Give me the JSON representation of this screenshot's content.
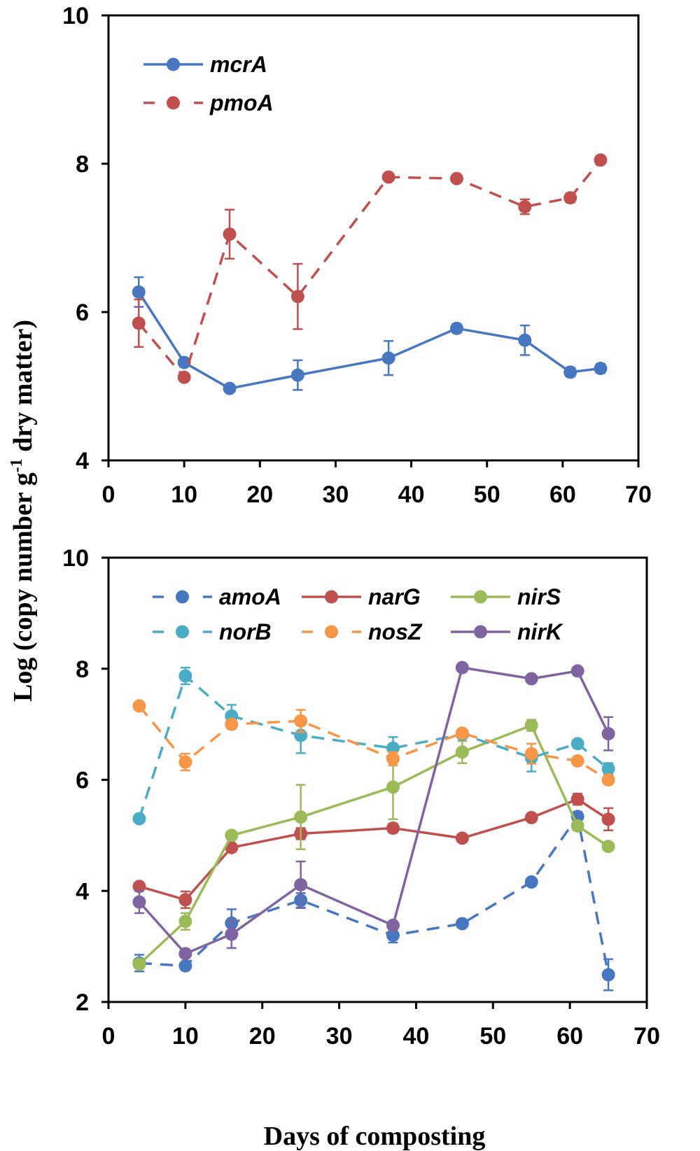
{
  "figure": {
    "ylabel_main": "Log (copy number g",
    "ylabel_sup": "-1",
    "ylabel_tail": " dry matter)",
    "xlabel": "Days of composting"
  },
  "chart_data": [
    {
      "type": "line",
      "panel": "top",
      "title": "",
      "xlabel": "Days of composting",
      "ylabel": "Log (copy number g-1 dry matter)",
      "xlim": [
        0,
        70
      ],
      "ylim": [
        4,
        10
      ],
      "xticks": [
        0,
        10,
        20,
        30,
        40,
        50,
        60,
        70
      ],
      "yticks": [
        4,
        6,
        8,
        10
      ],
      "legend_position": "top-left",
      "legend_columns": 1,
      "series": [
        {
          "name": "mcrA",
          "color": "#4677c0",
          "dashed": false,
          "x": [
            4,
            10,
            16,
            25,
            37,
            46,
            55,
            61,
            65
          ],
          "values": [
            6.27,
            5.32,
            4.97,
            5.15,
            5.38,
            5.78,
            5.62,
            5.19,
            5.24
          ],
          "errors": [
            0.2,
            0.05,
            0.04,
            0.2,
            0.23,
            0.06,
            0.2,
            0.06,
            0.06
          ]
        },
        {
          "name": "pmoA",
          "color": "#c0504d",
          "dashed": true,
          "x": [
            4,
            10,
            16,
            25,
            37,
            46,
            55,
            61,
            65
          ],
          "values": [
            5.85,
            5.12,
            7.05,
            6.21,
            7.82,
            7.8,
            7.42,
            7.54,
            8.05
          ],
          "errors": [
            0.32,
            0.03,
            0.33,
            0.44,
            0.04,
            0.04,
            0.1,
            0.06,
            0.04
          ]
        }
      ]
    },
    {
      "type": "line",
      "panel": "bottom",
      "title": "",
      "xlabel": "Days of composting",
      "ylabel": "Log (copy number g-1 dry matter)",
      "xlim": [
        0,
        70
      ],
      "ylim": [
        2,
        10
      ],
      "xticks": [
        0,
        10,
        20,
        30,
        40,
        50,
        60,
        70
      ],
      "yticks": [
        2,
        4,
        6,
        8,
        10
      ],
      "legend_position": "top",
      "legend_columns": 3,
      "series": [
        {
          "name": "amoA",
          "color": "#4677c0",
          "dashed": true,
          "x": [
            4,
            10,
            16,
            25,
            37,
            46,
            55,
            61,
            65
          ],
          "values": [
            2.7,
            2.65,
            3.42,
            3.83,
            3.2,
            3.41,
            4.16,
            5.34,
            2.49
          ],
          "errors": [
            0.15,
            0.05,
            0.25,
            0.13,
            0.13,
            0.05,
            0.05,
            0.08,
            0.28
          ]
        },
        {
          "name": "narG",
          "color": "#c0504d",
          "dashed": false,
          "x": [
            4,
            10,
            16,
            25,
            37,
            46,
            55,
            61,
            65
          ],
          "values": [
            4.08,
            3.84,
            4.78,
            5.03,
            5.13,
            4.95,
            5.32,
            5.65,
            5.29
          ],
          "errors": [
            0.05,
            0.15,
            0.06,
            0.1,
            0.08,
            0.04,
            0.05,
            0.1,
            0.2
          ]
        },
        {
          "name": "nirS",
          "color": "#9bbb59",
          "dashed": false,
          "x": [
            4,
            10,
            16,
            25,
            37,
            46,
            55,
            61,
            65
          ],
          "values": [
            2.68,
            3.45,
            5.0,
            5.33,
            5.87,
            6.5,
            6.98,
            5.17,
            4.8
          ],
          "errors": [
            0.05,
            0.15,
            0.05,
            0.58,
            0.58,
            0.2,
            0.1,
            0.08,
            0.05
          ]
        },
        {
          "name": "norB",
          "color": "#4bacc6",
          "dashed": true,
          "x": [
            4,
            10,
            16,
            25,
            37,
            46,
            55,
            61,
            65
          ],
          "values": [
            5.3,
            7.87,
            7.15,
            6.8,
            6.57,
            6.82,
            6.4,
            6.65,
            6.2
          ],
          "errors": [
            0.04,
            0.15,
            0.2,
            0.32,
            0.2,
            0.05,
            0.25,
            0.05,
            0.1
          ]
        },
        {
          "name": "nosZ",
          "color": "#f79646",
          "dashed": true,
          "x": [
            4,
            10,
            16,
            25,
            37,
            46,
            55,
            61,
            65
          ],
          "values": [
            7.33,
            6.32,
            7.0,
            7.06,
            6.38,
            6.84,
            6.47,
            6.34,
            6.0
          ],
          "errors": [
            0.05,
            0.15,
            0.08,
            0.2,
            0.12,
            0.05,
            0.18,
            0.05,
            0.08
          ]
        },
        {
          "name": "nirK",
          "color": "#8064a2",
          "dashed": false,
          "x": [
            4,
            10,
            16,
            25,
            37,
            46,
            55,
            61,
            65
          ],
          "values": [
            3.8,
            2.87,
            3.22,
            4.11,
            3.38,
            8.02,
            7.82,
            7.96,
            6.83
          ],
          "errors": [
            0.2,
            0.05,
            0.25,
            0.42,
            0.05,
            0.04,
            0.04,
            0.05,
            0.3
          ]
        }
      ]
    }
  ]
}
